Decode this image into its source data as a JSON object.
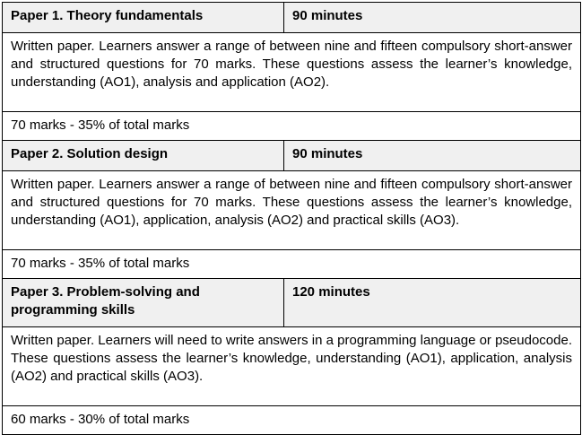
{
  "papers": [
    {
      "title": "Paper 1. Theory fundamentals",
      "duration": "90 minutes",
      "description": "Written paper. Learners answer a range of between nine and fifteen compulsory short-answer and structured questions for 70 marks. These questions assess the learner’s knowledge, understanding (AO1), analysis and application (AO2).",
      "marks": "70 marks - 35% of total marks"
    },
    {
      "title": "Paper 2. Solution design",
      "duration": "90 minutes",
      "description": "Written paper. Learners answer a range of between nine and fifteen compulsory short-answer and structured questions for 70 marks. These questions assess the learner’s knowledge, understanding (AO1), application, analysis (AO2) and practical skills (AO3).",
      "marks": "70 marks - 35% of total marks"
    },
    {
      "title": "Paper 3. Problem-solving and programming skills",
      "duration": "120 minutes",
      "description": "Written paper. Learners will need to write answers in a programming language or pseudocode. These questions assess the learner’s knowledge, understanding (AO1), application, analysis (AO2) and practical skills (AO3).",
      "marks": "60 marks - 30% of total marks"
    }
  ]
}
